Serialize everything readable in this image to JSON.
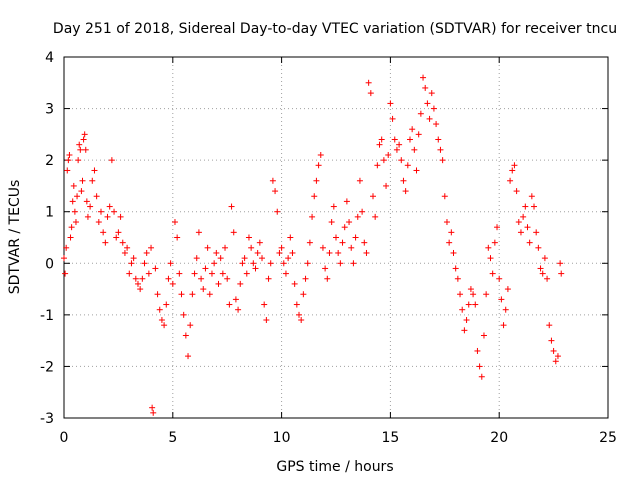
{
  "chart_data": {
    "type": "scatter",
    "title": "Day 251 of 2018, Sidereal Day-to-day VTEC variation (SDTVAR) for receiver tncu",
    "xlabel": "GPS time / hours",
    "ylabel": "SDTVAR / TECUs",
    "xlim": [
      0,
      25
    ],
    "ylim": [
      -3,
      4
    ],
    "xticks": [
      0,
      5,
      10,
      15,
      20,
      25
    ],
    "yticks": [
      -3,
      -2,
      -1,
      0,
      1,
      2,
      3,
      4
    ],
    "grid": true,
    "marker": "+",
    "marker_color": "#ff0000",
    "series": [
      {
        "name": "SDTVAR",
        "points": [
          [
            0.0,
            0.1
          ],
          [
            0.05,
            -0.2
          ],
          [
            0.1,
            0.3
          ],
          [
            0.15,
            1.8
          ],
          [
            0.2,
            2.0
          ],
          [
            0.25,
            2.1
          ],
          [
            0.3,
            0.5
          ],
          [
            0.35,
            0.7
          ],
          [
            0.4,
            1.2
          ],
          [
            0.45,
            1.5
          ],
          [
            0.5,
            1.0
          ],
          [
            0.55,
            0.8
          ],
          [
            0.6,
            1.3
          ],
          [
            0.65,
            2.0
          ],
          [
            0.7,
            2.3
          ],
          [
            0.75,
            2.2
          ],
          [
            0.8,
            1.4
          ],
          [
            0.85,
            1.6
          ],
          [
            0.9,
            2.4
          ],
          [
            0.95,
            2.5
          ],
          [
            1.0,
            2.2
          ],
          [
            1.05,
            1.2
          ],
          [
            1.1,
            0.9
          ],
          [
            1.2,
            1.1
          ],
          [
            1.3,
            1.6
          ],
          [
            1.4,
            1.8
          ],
          [
            1.5,
            1.3
          ],
          [
            1.6,
            0.8
          ],
          [
            1.7,
            1.0
          ],
          [
            1.8,
            0.6
          ],
          [
            1.9,
            0.4
          ],
          [
            2.0,
            0.9
          ],
          [
            2.1,
            1.1
          ],
          [
            2.2,
            2.0
          ],
          [
            2.3,
            1.0
          ],
          [
            2.4,
            0.5
          ],
          [
            2.5,
            0.6
          ],
          [
            2.6,
            0.9
          ],
          [
            2.7,
            0.4
          ],
          [
            2.8,
            0.2
          ],
          [
            2.9,
            0.3
          ],
          [
            3.0,
            -0.2
          ],
          [
            3.1,
            0.0
          ],
          [
            3.2,
            0.1
          ],
          [
            3.3,
            -0.3
          ],
          [
            3.4,
            -0.4
          ],
          [
            3.5,
            -0.5
          ],
          [
            3.6,
            -0.3
          ],
          [
            3.7,
            0.0
          ],
          [
            3.8,
            0.2
          ],
          [
            3.9,
            -0.2
          ],
          [
            4.0,
            0.3
          ],
          [
            4.05,
            -2.8
          ],
          [
            4.1,
            -2.9
          ],
          [
            4.2,
            -0.1
          ],
          [
            4.3,
            -0.6
          ],
          [
            4.4,
            -0.9
          ],
          [
            4.5,
            -1.1
          ],
          [
            4.6,
            -1.2
          ],
          [
            4.7,
            -0.8
          ],
          [
            4.8,
            -0.3
          ],
          [
            4.9,
            0.0
          ],
          [
            5.0,
            -0.4
          ],
          [
            5.1,
            0.8
          ],
          [
            5.2,
            0.5
          ],
          [
            5.3,
            -0.2
          ],
          [
            5.4,
            -0.6
          ],
          [
            5.5,
            -1.0
          ],
          [
            5.6,
            -1.4
          ],
          [
            5.7,
            -1.8
          ],
          [
            5.8,
            -1.2
          ],
          [
            5.9,
            -0.6
          ],
          [
            6.0,
            -0.2
          ],
          [
            6.1,
            0.1
          ],
          [
            6.2,
            0.6
          ],
          [
            6.3,
            -0.3
          ],
          [
            6.4,
            -0.5
          ],
          [
            6.5,
            -0.1
          ],
          [
            6.6,
            0.3
          ],
          [
            6.7,
            -0.6
          ],
          [
            6.8,
            -0.2
          ],
          [
            6.9,
            0.0
          ],
          [
            7.0,
            0.2
          ],
          [
            7.1,
            -0.4
          ],
          [
            7.2,
            0.1
          ],
          [
            7.3,
            -0.2
          ],
          [
            7.4,
            0.3
          ],
          [
            7.5,
            -0.3
          ],
          [
            7.6,
            -0.8
          ],
          [
            7.7,
            1.1
          ],
          [
            7.8,
            0.6
          ],
          [
            7.9,
            -0.7
          ],
          [
            8.0,
            -0.9
          ],
          [
            8.1,
            -0.4
          ],
          [
            8.2,
            0.0
          ],
          [
            8.3,
            0.1
          ],
          [
            8.4,
            -0.2
          ],
          [
            8.5,
            0.5
          ],
          [
            8.6,
            0.3
          ],
          [
            8.7,
            0.0
          ],
          [
            8.8,
            -0.1
          ],
          [
            8.9,
            0.2
          ],
          [
            9.0,
            0.4
          ],
          [
            9.1,
            0.1
          ],
          [
            9.2,
            -0.8
          ],
          [
            9.3,
            -1.1
          ],
          [
            9.4,
            -0.3
          ],
          [
            9.5,
            0.0
          ],
          [
            9.6,
            1.6
          ],
          [
            9.7,
            1.4
          ],
          [
            9.8,
            1.0
          ],
          [
            9.9,
            0.2
          ],
          [
            10.0,
            0.3
          ],
          [
            10.1,
            0.0
          ],
          [
            10.2,
            -0.2
          ],
          [
            10.3,
            0.1
          ],
          [
            10.4,
            0.5
          ],
          [
            10.5,
            0.2
          ],
          [
            10.6,
            -0.4
          ],
          [
            10.7,
            -0.8
          ],
          [
            10.8,
            -1.0
          ],
          [
            10.9,
            -1.1
          ],
          [
            11.0,
            -0.6
          ],
          [
            11.1,
            -0.3
          ],
          [
            11.2,
            0.0
          ],
          [
            11.3,
            0.4
          ],
          [
            11.4,
            0.9
          ],
          [
            11.5,
            1.3
          ],
          [
            11.6,
            1.6
          ],
          [
            11.7,
            1.9
          ],
          [
            11.8,
            2.1
          ],
          [
            11.9,
            0.3
          ],
          [
            12.0,
            -0.1
          ],
          [
            12.1,
            -0.3
          ],
          [
            12.2,
            0.2
          ],
          [
            12.3,
            0.8
          ],
          [
            12.4,
            1.1
          ],
          [
            12.5,
            0.5
          ],
          [
            12.6,
            0.2
          ],
          [
            12.7,
            0.0
          ],
          [
            12.8,
            0.4
          ],
          [
            12.9,
            0.7
          ],
          [
            13.0,
            1.2
          ],
          [
            13.1,
            0.8
          ],
          [
            13.2,
            0.3
          ],
          [
            13.3,
            0.0
          ],
          [
            13.4,
            0.5
          ],
          [
            13.5,
            0.9
          ],
          [
            13.6,
            1.6
          ],
          [
            13.7,
            1.0
          ],
          [
            13.8,
            0.4
          ],
          [
            13.9,
            0.2
          ],
          [
            14.0,
            3.5
          ],
          [
            14.1,
            3.3
          ],
          [
            14.2,
            1.3
          ],
          [
            14.3,
            0.9
          ],
          [
            14.4,
            1.9
          ],
          [
            14.5,
            2.3
          ],
          [
            14.6,
            2.4
          ],
          [
            14.7,
            2.0
          ],
          [
            14.8,
            1.5
          ],
          [
            14.9,
            2.1
          ],
          [
            15.0,
            3.1
          ],
          [
            15.1,
            2.8
          ],
          [
            15.2,
            2.4
          ],
          [
            15.3,
            2.2
          ],
          [
            15.4,
            2.3
          ],
          [
            15.5,
            2.0
          ],
          [
            15.6,
            1.6
          ],
          [
            15.7,
            1.4
          ],
          [
            15.8,
            1.9
          ],
          [
            15.9,
            2.4
          ],
          [
            16.0,
            2.6
          ],
          [
            16.1,
            2.2
          ],
          [
            16.2,
            1.8
          ],
          [
            16.3,
            2.5
          ],
          [
            16.4,
            2.9
          ],
          [
            16.5,
            3.6
          ],
          [
            16.6,
            3.4
          ],
          [
            16.7,
            3.1
          ],
          [
            16.8,
            2.8
          ],
          [
            16.9,
            3.3
          ],
          [
            17.0,
            3.0
          ],
          [
            17.1,
            2.7
          ],
          [
            17.2,
            2.4
          ],
          [
            17.3,
            2.2
          ],
          [
            17.4,
            2.0
          ],
          [
            17.5,
            1.3
          ],
          [
            17.6,
            0.8
          ],
          [
            17.7,
            0.4
          ],
          [
            17.8,
            0.6
          ],
          [
            17.9,
            0.2
          ],
          [
            18.0,
            -0.1
          ],
          [
            18.1,
            -0.3
          ],
          [
            18.2,
            -0.6
          ],
          [
            18.3,
            -0.9
          ],
          [
            18.4,
            -1.3
          ],
          [
            18.5,
            -1.1
          ],
          [
            18.6,
            -0.8
          ],
          [
            18.7,
            -0.5
          ],
          [
            18.8,
            -0.6
          ],
          [
            18.9,
            -0.8
          ],
          [
            19.0,
            -1.7
          ],
          [
            19.1,
            -2.0
          ],
          [
            19.2,
            -2.2
          ],
          [
            19.3,
            -1.4
          ],
          [
            19.4,
            -0.6
          ],
          [
            19.5,
            0.3
          ],
          [
            19.6,
            0.1
          ],
          [
            19.7,
            -0.2
          ],
          [
            19.8,
            0.4
          ],
          [
            19.9,
            0.7
          ],
          [
            20.0,
            -0.3
          ],
          [
            20.1,
            -0.7
          ],
          [
            20.2,
            -1.2
          ],
          [
            20.3,
            -0.9
          ],
          [
            20.4,
            -0.5
          ],
          [
            20.5,
            1.6
          ],
          [
            20.6,
            1.8
          ],
          [
            20.7,
            1.9
          ],
          [
            20.8,
            1.4
          ],
          [
            20.9,
            0.8
          ],
          [
            21.0,
            0.6
          ],
          [
            21.1,
            0.9
          ],
          [
            21.2,
            1.1
          ],
          [
            21.3,
            0.7
          ],
          [
            21.4,
            0.4
          ],
          [
            21.5,
            1.3
          ],
          [
            21.6,
            1.1
          ],
          [
            21.7,
            0.6
          ],
          [
            21.8,
            0.3
          ],
          [
            21.9,
            -0.1
          ],
          [
            22.0,
            -0.2
          ],
          [
            22.1,
            0.1
          ],
          [
            22.2,
            -0.3
          ],
          [
            22.3,
            -1.2
          ],
          [
            22.4,
            -1.5
          ],
          [
            22.5,
            -1.7
          ],
          [
            22.6,
            -1.9
          ],
          [
            22.7,
            -1.8
          ],
          [
            22.8,
            0.0
          ],
          [
            22.85,
            -0.2
          ]
        ]
      }
    ]
  }
}
